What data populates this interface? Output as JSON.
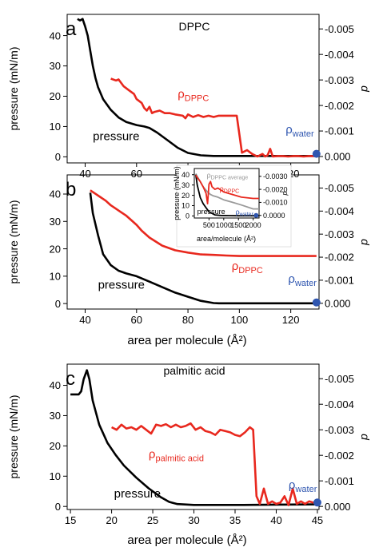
{
  "colors": {
    "pressure": "#000000",
    "rho": "#e8281e",
    "water": "#2f56b0",
    "inset_avg": "#9a9a9a",
    "axis": "#000000"
  },
  "chart_data": [
    {
      "type": "line",
      "panel_label": "a",
      "title": "DPPC",
      "xlabel": "",
      "ylabel": "pressure (mN/m)",
      "y2label": "d",
      "xlim": [
        33,
        131
      ],
      "ylim": [
        -2,
        47
      ],
      "y2lim": [
        0.00025,
        -0.00557
      ],
      "xticks": [
        "40",
        "60",
        "80",
        "100",
        "120"
      ],
      "xtick_values": [
        40,
        60,
        80,
        100,
        120
      ],
      "yticks": [
        "0",
        "10",
        "20",
        "30",
        "40"
      ],
      "ytick_values": [
        0,
        10,
        20,
        30,
        40
      ],
      "y2ticks": [
        "0.000",
        "-0.001",
        "-0.002",
        "-0.003",
        "-0.004",
        "-0.005"
      ],
      "y2tick_values": [
        0,
        -0.001,
        -0.002,
        -0.003,
        -0.004,
        -0.005
      ],
      "series": [
        {
          "name": "pressure",
          "axis": "left",
          "color": "#000000",
          "x": [
            37,
            38,
            39,
            40,
            41,
            42,
            43,
            44,
            45,
            47,
            50,
            53,
            56,
            60,
            63,
            65,
            68,
            72,
            76,
            80,
            85,
            90,
            95,
            100,
            110,
            120,
            130
          ],
          "y": [
            45.5,
            45,
            45.5,
            43,
            40,
            35,
            30,
            26,
            23,
            19,
            15.5,
            13,
            11.5,
            10.5,
            10,
            9.5,
            8,
            5.5,
            3,
            1.3,
            0.5,
            0.3,
            0.3,
            0.3,
            0.3,
            0.3,
            0.3
          ]
        },
        {
          "name": "ρDPPC",
          "axis": "right",
          "color": "#e8281e",
          "x": [
            50,
            52,
            53,
            55,
            57,
            59,
            60,
            62,
            63,
            64,
            65,
            66,
            67,
            69,
            71,
            73,
            75,
            78,
            79,
            80,
            82,
            84,
            86,
            88,
            90,
            92,
            93,
            94,
            97,
            99,
            101,
            103,
            105,
            107,
            109,
            110,
            111,
            112,
            113,
            115,
            117,
            119,
            121,
            123,
            125,
            127,
            129,
            131
          ],
          "y": [
            -0.00305,
            -0.00298,
            -0.00302,
            -0.00275,
            -0.0026,
            -0.00245,
            -0.00225,
            -0.0021,
            -0.0019,
            -0.0018,
            -0.00195,
            -0.0017,
            -0.00175,
            -0.0018,
            -0.0017,
            -0.0017,
            -0.00165,
            -0.0016,
            -0.0015,
            -0.00165,
            -0.00155,
            -0.00162,
            -0.00155,
            -0.0016,
            -0.00155,
            -0.0016,
            -0.0016,
            -0.0016,
            -0.0016,
            -0.0016,
            -0.00015,
            -0.00025,
            -0.0001,
            0.0,
            -0.0001,
            0.0,
            -5e-05,
            -0.0003,
            0.0,
            -2e-05,
            -2e-05,
            0.0,
            -2e-05,
            -2e-05,
            0.0,
            -2e-05,
            -2e-05,
            -2e-05
          ]
        }
      ],
      "annotations": [
        {
          "text_base": "ρ",
          "text_sub": "DPPC",
          "color": "#e8281e",
          "x": 76,
          "y": -0.0023
        },
        {
          "text": "pressure",
          "color": "#000000",
          "x": 43,
          "y": 5.5
        },
        {
          "text_base": "ρ",
          "text_sub": "water",
          "color": "#2f56b0",
          "x": 118,
          "y": -0.0009
        }
      ],
      "markers": [
        {
          "x": 130,
          "y": 1,
          "axis": "left",
          "color": "#2f56b0"
        }
      ]
    },
    {
      "type": "line",
      "panel_label": "b",
      "title": "",
      "xlabel": "area per molecule (Å²)",
      "ylabel": "pressure (mN/m)",
      "y2label": "d",
      "xlim": [
        33,
        131
      ],
      "ylim": [
        -2,
        47
      ],
      "y2lim": [
        0.00025,
        -0.00557
      ],
      "xticks": [
        "40",
        "60",
        "80",
        "100",
        "120"
      ],
      "xtick_values": [
        40,
        60,
        80,
        100,
        120
      ],
      "yticks": [
        "0",
        "10",
        "20",
        "30",
        "40"
      ],
      "ytick_values": [
        0,
        10,
        20,
        30,
        40
      ],
      "y2ticks": [
        "0.000",
        "-0.001",
        "-0.002",
        "-0.003",
        "-0.004",
        "-0.005"
      ],
      "y2tick_values": [
        0,
        -0.001,
        -0.002,
        -0.003,
        -0.004,
        -0.005
      ],
      "series": [
        {
          "name": "pressure",
          "axis": "left",
          "color": "#000000",
          "x": [
            42,
            43,
            45,
            47,
            50,
            53,
            56,
            60,
            65,
            70,
            75,
            80,
            85,
            90,
            92,
            95,
            100,
            110,
            120,
            130
          ],
          "y": [
            40.5,
            33,
            25,
            18,
            14,
            12,
            11,
            10,
            8,
            6,
            4,
            2.5,
            1,
            0.2,
            0.1,
            0.1,
            0.1,
            0.1,
            0.1,
            0.1
          ]
        },
        {
          "name": "ρDPPC",
          "axis": "right",
          "color": "#e8281e",
          "x": [
            42,
            44,
            46,
            48,
            50,
            52,
            54,
            56,
            58,
            60,
            62,
            65,
            70,
            75,
            80,
            85,
            90,
            95,
            100,
            110,
            120,
            130
          ],
          "y": [
            -0.0049,
            -0.00475,
            -0.0046,
            -0.00445,
            -0.00425,
            -0.0041,
            -0.00395,
            -0.0038,
            -0.0036,
            -0.0034,
            -0.00315,
            -0.00285,
            -0.0025,
            -0.0023,
            -0.0022,
            -0.00212,
            -0.0021,
            -0.00207,
            -0.00205,
            -0.00205,
            -0.00205,
            -0.00205
          ]
        }
      ],
      "annotations": [
        {
          "text_base": "ρ",
          "text_sub": "DPPC",
          "color": "#e8281e",
          "x": 97,
          "y": -0.00145
        },
        {
          "text": "pressure",
          "color": "#000000",
          "x": 45,
          "y": 5.5
        },
        {
          "text_base": "ρ",
          "text_sub": "water",
          "color": "#2f56b0",
          "x": 119,
          "y": -0.0009
        }
      ],
      "markers": [
        {
          "x": 130,
          "y": 0.4,
          "axis": "left",
          "color": "#2f56b0"
        }
      ]
    },
    {
      "type": "line",
      "panel_label": "",
      "title": "",
      "xlabel": "area/molecule (Å²)",
      "ylabel": "pressure (mN/m)",
      "y2label": "d",
      "xlim": [
        0,
        2200
      ],
      "ylim": [
        -2,
        46
      ],
      "y2lim": [
        0.0002,
        -0.0036
      ],
      "xticks": [
        "500",
        "1000",
        "1500",
        "2000"
      ],
      "xtick_values": [
        500,
        1000,
        1500,
        2000
      ],
      "yticks": [
        "0",
        "10",
        "20",
        "30",
        "40"
      ],
      "ytick_values": [
        0,
        10,
        20,
        30,
        40
      ],
      "y2ticks": [
        "0.0000",
        "-0.0010",
        "-0.0020",
        "-0.0030"
      ],
      "y2tick_values": [
        0,
        -0.001,
        -0.002,
        -0.003
      ],
      "series": [
        {
          "name": "ρDPPC average",
          "axis": "right",
          "color": "#9a9a9a",
          "x": [
            50,
            150,
            300,
            450,
            550,
            650,
            800,
            1000,
            1300,
            1600,
            2000,
            2200
          ],
          "y": [
            -0.0032,
            -0.0028,
            -0.0022,
            -0.0018,
            -0.0016,
            -0.0015,
            -0.0014,
            -0.0012,
            -0.001,
            -0.0008,
            -0.0005,
            -0.0005
          ]
        },
        {
          "name": "pressure",
          "axis": "left",
          "color": "#000000",
          "x": [
            50,
            100,
            200,
            300,
            400,
            500,
            700,
            900,
            1200,
            1500,
            2000,
            2200
          ],
          "y": [
            40,
            30,
            18,
            12,
            8,
            4,
            1,
            0.5,
            0.3,
            0.2,
            0.2,
            0.2
          ]
        },
        {
          "name": "ρDPPC",
          "axis": "right",
          "color": "#e8281e",
          "x": [
            50,
            100,
            200,
            300,
            400,
            450,
            500,
            550,
            600,
            700,
            800,
            1000,
            1300,
            1600,
            2000,
            2200
          ],
          "y": [
            -0.0031,
            -0.0029,
            -0.0026,
            -0.0022,
            -0.0017,
            -0.0009,
            -0.0024,
            -0.0026,
            -0.0022,
            -0.002,
            -0.0021,
            -0.0018,
            -0.0016,
            -0.0014,
            -0.0013,
            -0.0013
          ]
        }
      ],
      "annotations": [
        {
          "text_base": "ρ",
          "text_sub": "DPPC average",
          "color": "#9a9a9a",
          "x": 420,
          "y": 37
        },
        {
          "text_base": "ρ",
          "text_sub": "DPPC",
          "color": "#e8281e",
          "x": 860,
          "y": 24
        },
        {
          "text": "pressure",
          "color": "#000000",
          "x": 100,
          "y": 2
        },
        {
          "text_base": "ρ",
          "text_sub": "water",
          "color": "#2f56b0",
          "x": 1400,
          "y": 1.5
        }
      ],
      "markers": [
        {
          "x": 2100,
          "y": 0.5,
          "axis": "left",
          "color": "#2f56b0"
        }
      ]
    },
    {
      "type": "line",
      "panel_label": "c",
      "title": "palmitic acid",
      "xlabel": "area per molecule (Å²)",
      "ylabel": "pressure (mN/m)",
      "y2label": "d",
      "xlim": [
        14.6,
        45.2
      ],
      "ylim": [
        -1,
        47
      ],
      "y2lim": [
        0.00012,
        -0.00557
      ],
      "xticks": [
        "15",
        "20",
        "25",
        "30",
        "35",
        "40",
        "45"
      ],
      "xtick_values": [
        15,
        20,
        25,
        30,
        35,
        40,
        45
      ],
      "yticks": [
        "0",
        "10",
        "20",
        "30",
        "40"
      ],
      "ytick_values": [
        0,
        10,
        20,
        30,
        40
      ],
      "y2ticks": [
        "0.000",
        "-0.001",
        "-0.002",
        "-0.003",
        "-0.004",
        "-0.005"
      ],
      "y2tick_values": [
        0,
        -0.001,
        -0.002,
        -0.003,
        -0.004,
        -0.005
      ],
      "series": [
        {
          "name": "pressure",
          "axis": "left",
          "color": "#000000",
          "x": [
            15,
            15.5,
            16,
            16.3,
            16.6,
            17,
            17.3,
            17.7,
            18.5,
            19.5,
            20.5,
            21.5,
            23,
            24.5,
            26,
            27,
            28,
            30,
            33,
            36,
            40,
            45
          ],
          "y": [
            37,
            37,
            37,
            38,
            42,
            45,
            42,
            35,
            27,
            21,
            17,
            13.5,
            9.5,
            6,
            3,
            1.5,
            0.8,
            0.5,
            0.5,
            0.5,
            0.6,
            0.7
          ]
        },
        {
          "name": "ρpalmitic acid",
          "axis": "right",
          "color": "#e8281e",
          "x": [
            20,
            20.6,
            21.2,
            21.8,
            22.4,
            23,
            23.6,
            24.2,
            24.8,
            25.4,
            26,
            26.6,
            27.2,
            27.8,
            28.4,
            29,
            29.6,
            30.2,
            30.8,
            31.4,
            32,
            32.6,
            33.2,
            33.8,
            34.4,
            35,
            35.6,
            36.2,
            36.8,
            37.2,
            37.6,
            38,
            38.5,
            39,
            39.5,
            40,
            40.5,
            41,
            41.5,
            42,
            42.5,
            43,
            43.5,
            44,
            44.5,
            45
          ],
          "y": [
            -0.0031,
            -0.003,
            -0.0032,
            -0.00305,
            -0.0031,
            -0.003,
            -0.00315,
            -0.003,
            -0.00285,
            -0.0032,
            -0.00315,
            -0.00322,
            -0.0031,
            -0.0032,
            -0.0031,
            -0.00315,
            -0.00325,
            -0.003,
            -0.0031,
            -0.00295,
            -0.0029,
            -0.0028,
            -0.003,
            -0.00295,
            -0.0029,
            -0.0028,
            -0.00275,
            -0.0029,
            -0.0031,
            -0.003,
            -0.0004,
            -0.0001,
            -0.0007,
            -0.0001,
            -0.0002,
            -0.0001,
            -0.00015,
            -0.0004,
            -5e-05,
            -0.0007,
            -0.0001,
            -0.0002,
            -0.0001,
            -0.0002,
            -0.00015,
            -0.0001
          ]
        }
      ],
      "annotations": [
        {
          "text_base": "ρ",
          "text_sub": "palmitic acid",
          "color": "#e8281e",
          "x": 24.5,
          "y": -0.0019
        },
        {
          "text": "pressure",
          "color": "#000000",
          "x": 20.3,
          "y": 3
        },
        {
          "text_base": "ρ",
          "text_sub": "water",
          "color": "#2f56b0",
          "x": 41.5,
          "y": -0.0007
        }
      ],
      "markers": [
        {
          "x": 45,
          "y": 1.3,
          "axis": "left",
          "color": "#2f56b0"
        }
      ]
    }
  ]
}
